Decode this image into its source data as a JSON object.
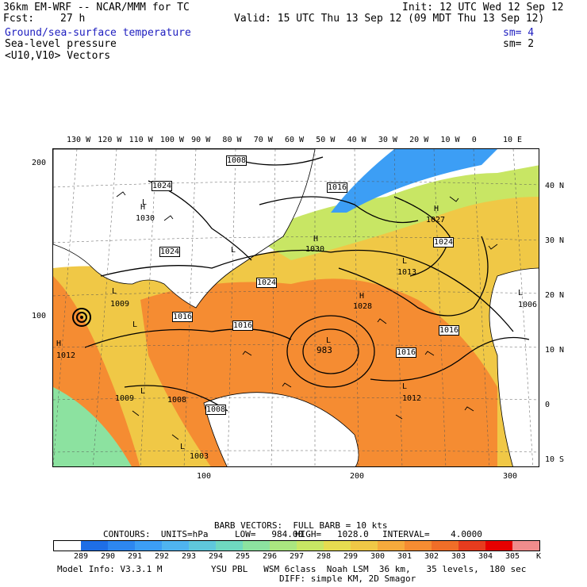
{
  "header": {
    "model": "36km EM-WRF -- NCAR/MMM for TC",
    "init": "Init: 12 UTC Wed 12 Sep 12",
    "fcst_label": "Fcst:",
    "fcst_value": "27 h",
    "valid": "Valid: 15 UTC Thu 13 Sep 12 (09 MDT Thu 13 Sep 12)"
  },
  "fields": [
    {
      "label": "Ground/sea-surface temperature",
      "sm": "sm= 4",
      "color": "#2020c0"
    },
    {
      "label": "Sea-level pressure",
      "sm": "sm= 2",
      "color": "#000000"
    },
    {
      "label": "<U10,V10> Vectors",
      "sm": "",
      "color": "#000000"
    }
  ],
  "map": {
    "top_lon_labels": [
      "130 W",
      "120 W",
      "110 W",
      "100 W",
      "90 W",
      "80 W",
      "70 W",
      "60 W",
      "50 W",
      "40 W",
      "30 W",
      "20 W",
      "10 W",
      "0",
      "10 E"
    ],
    "right_lat_labels": [
      "40 N",
      "30 N",
      "20 N",
      "10 N",
      "0",
      "10 S"
    ],
    "left_grid_labels": [
      "200",
      "100"
    ],
    "bottom_grid_labels": [
      "100",
      "200",
      "300"
    ],
    "pressure_boxes": [
      "1008",
      "1024",
      "1016",
      "1024",
      "1024",
      "1024",
      "1016",
      "1016",
      "1016",
      "1016",
      "1008"
    ],
    "pressure_labels": [
      "1030",
      "1030",
      "1027",
      "1013",
      "1028",
      "1009",
      "1009",
      "1012",
      "1006",
      "1008",
      "1003",
      "1012"
    ],
    "low_center": "983",
    "highs": [
      "H",
      "H",
      "H",
      "H",
      "H"
    ],
    "lows": [
      "L",
      "L",
      "L",
      "L",
      "L",
      "L",
      "L",
      "L",
      "L",
      "L"
    ]
  },
  "footer": {
    "barb_line": "BARB VECTORS:  FULL BARB = 10 kts",
    "contours_label": "CONTOURS:  UNITS=hPa",
    "low": "LOW=   984.00",
    "high": "HIGH=   1028.0",
    "interval": "INTERVAL=    4.0000",
    "colorbar_values": [
      "289",
      "290",
      "291",
      "292",
      "293",
      "294",
      "295",
      "296",
      "297",
      "298",
      "299",
      "300",
      "301",
      "302",
      "303",
      "304",
      "305"
    ],
    "colorbar_unit": "K",
    "colorbar_colors": [
      "#ffffff",
      "#1e6ee6",
      "#2d87f0",
      "#3c9ef5",
      "#4fb4f0",
      "#5fc8dc",
      "#6fd8c0",
      "#8ce2a0",
      "#aae680",
      "#c8e664",
      "#e6dc50",
      "#f0c846",
      "#f5aa3c",
      "#f58c32",
      "#f06e28",
      "#e63c1e",
      "#e60000",
      "#f08c8c"
    ],
    "model_info": "Model Info: V3.3.1 M",
    "physics": "YSU PBL   WSM 6class  Noah LSM  36 km,   35 levels,  180 sec",
    "diff": "DIFF: simple KM, 2D Smagor"
  }
}
